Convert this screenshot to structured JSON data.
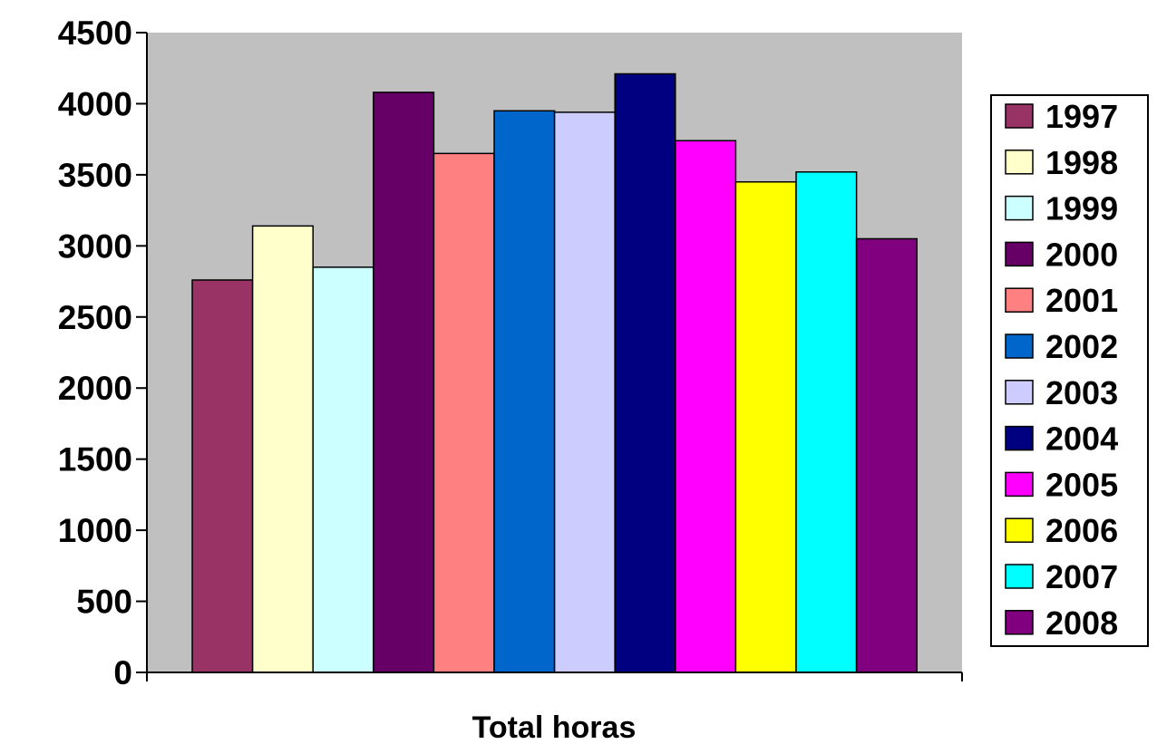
{
  "chart_data": {
    "type": "bar",
    "categories": [
      "Total horas"
    ],
    "series": [
      {
        "name": "1997",
        "values": [
          2760
        ],
        "color": "#993366"
      },
      {
        "name": "1998",
        "values": [
          3140
        ],
        "color": "#FFFFCC"
      },
      {
        "name": "1999",
        "values": [
          2850
        ],
        "color": "#CCFFFF"
      },
      {
        "name": "2000",
        "values": [
          4080
        ],
        "color": "#660066"
      },
      {
        "name": "2001",
        "values": [
          3650
        ],
        "color": "#FF8080"
      },
      {
        "name": "2002",
        "values": [
          3950
        ],
        "color": "#0066CC"
      },
      {
        "name": "2003",
        "values": [
          3940
        ],
        "color": "#CCCCFF"
      },
      {
        "name": "2004",
        "values": [
          4210
        ],
        "color": "#000080"
      },
      {
        "name": "2005",
        "values": [
          3740
        ],
        "color": "#FF00FF"
      },
      {
        "name": "2006",
        "values": [
          3450
        ],
        "color": "#FFFF00"
      },
      {
        "name": "2007",
        "values": [
          3520
        ],
        "color": "#00FFFF"
      },
      {
        "name": "2008",
        "values": [
          3050
        ],
        "color": "#800080"
      }
    ],
    "xlabel": "Total horas",
    "ylim": [
      0,
      4500
    ],
    "yticks": [
      "0",
      "500",
      "1000",
      "1500",
      "2000",
      "2500",
      "3000",
      "3500",
      "4000",
      "4500"
    ],
    "plot_background": "#C0C0C0",
    "grid": false,
    "legend_position": "right"
  }
}
